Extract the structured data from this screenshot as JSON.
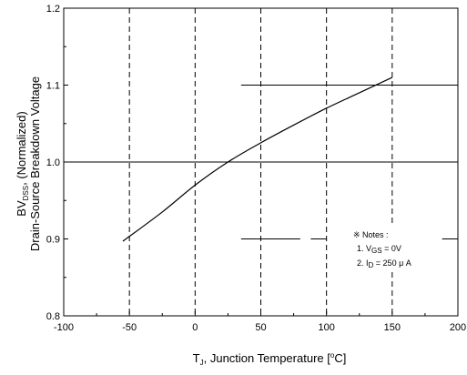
{
  "chart_data": {
    "type": "line",
    "title": "",
    "xlabel": {
      "main": "T",
      "sub": "J",
      "rest": ", Junction Temperature [",
      "deg": "o",
      "unit": "C]"
    },
    "ylabel": {
      "line1": {
        "main": "BV",
        "sub": "DSS",
        "rest": ", (Normalized)"
      },
      "line2": "Drain-Source Breakdown Voltage"
    },
    "xlim": [
      -100,
      200
    ],
    "ylim": [
      0.8,
      1.2
    ],
    "x_ticks": [
      -100,
      -50,
      0,
      50,
      100,
      150,
      200
    ],
    "x_tick_labels": [
      "-100",
      "-50",
      "0",
      "50",
      "100",
      "150",
      "200"
    ],
    "y_ticks": [
      0.8,
      0.9,
      1.0,
      1.1,
      1.2
    ],
    "y_tick_labels": [
      "0.8",
      "0.9",
      "1.0",
      "1.1",
      "1.2"
    ],
    "vertical_grid_dashed": [
      -50,
      0,
      50,
      100,
      150
    ],
    "horizontal_grid_solid": [
      0.9,
      1.0,
      1.1
    ],
    "series": [
      {
        "x": [
          -55,
          -25,
          0,
          25,
          50,
          75,
          100,
          125,
          150
        ],
        "values": [
          0.897,
          0.935,
          0.97,
          1.0,
          1.025,
          1.048,
          1.07,
          1.09,
          1.11
        ]
      }
    ],
    "notes": {
      "title": "※ Notes :",
      "items": [
        {
          "prefix": "1. V",
          "sub": "GS",
          "rest": " = 0V"
        },
        {
          "prefix": "2. I",
          "sub": "D",
          "rest": " = 250 μ A"
        }
      ]
    }
  }
}
